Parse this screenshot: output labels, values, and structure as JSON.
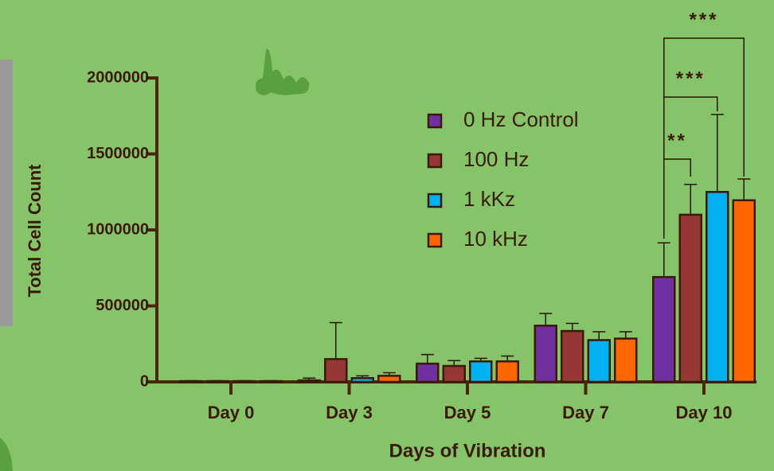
{
  "chart_data": {
    "type": "bar",
    "ylabel": "Total Cell Count",
    "xlabel": "Days of Vibration",
    "categories": [
      "Day 0",
      "Day 3",
      "Day 5",
      "Day 7",
      "Day 10"
    ],
    "series": [
      {
        "name": "0 Hz Control",
        "color": "#7030a0",
        "values": [
          5000,
          10000,
          120000,
          370000,
          690000
        ],
        "errors": [
          3000,
          15000,
          60000,
          80000,
          225000
        ]
      },
      {
        "name": "100 Hz",
        "color": "#953735",
        "values": [
          5000,
          150000,
          105000,
          335000,
          1100000
        ],
        "errors": [
          3000,
          240000,
          35000,
          50000,
          200000
        ]
      },
      {
        "name": "1 kKz",
        "color": "#00b0f0",
        "values": [
          5000,
          25000,
          135000,
          275000,
          1250000
        ],
        "errors": [
          3000,
          15000,
          20000,
          55000,
          510000
        ]
      },
      {
        "name": "10 kHz",
        "color": "#ff6600",
        "values": [
          5000,
          40000,
          135000,
          285000,
          1195000
        ],
        "errors": [
          3000,
          20000,
          35000,
          45000,
          140000
        ]
      }
    ],
    "ylim": [
      0,
      2000000
    ],
    "yticks": [
      0,
      500000,
      1000000,
      1500000,
      2000000
    ],
    "annotations": [
      "**",
      "***",
      "***"
    ]
  }
}
